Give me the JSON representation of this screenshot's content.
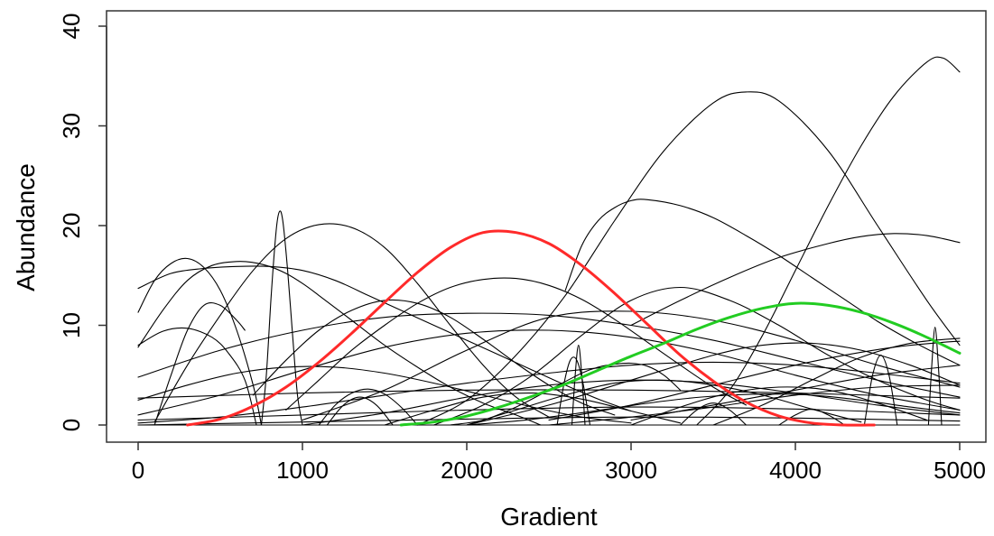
{
  "chart_data": {
    "type": "line",
    "title": "",
    "xlabel": "Gradient",
    "ylabel": "Abundance",
    "xlim": [
      -100,
      5100
    ],
    "ylim": [
      0,
      41
    ],
    "xticks": [
      0,
      1000,
      2000,
      3000,
      4000,
      5000
    ],
    "yticks": [
      0,
      10,
      20,
      30,
      40
    ],
    "xtick_labels": [
      "0",
      "1000",
      "2000",
      "3000",
      "4000",
      "5000"
    ],
    "ytick_labels": [
      "0",
      "10",
      "20",
      "30",
      "40"
    ],
    "grid": false,
    "legend": "none",
    "colors": {
      "default": "#000000",
      "red": "#ff2a2a",
      "green": "#22cc22",
      "frame": "#333333"
    },
    "series": [
      {
        "color": "red",
        "x": [
          300,
          500,
          700,
          900,
          1100,
          1300,
          1500,
          1700,
          1900,
          2100,
          2300,
          2500,
          2700,
          2900,
          3100,
          3300,
          3500,
          3700,
          3900,
          4100,
          4300,
          4480
        ],
        "y": [
          0.0,
          0.6,
          1.9,
          3.8,
          6.3,
          9.2,
          12.3,
          15.3,
          17.8,
          19.3,
          19.3,
          18.2,
          16.0,
          13.2,
          10.1,
          7.0,
          4.4,
          2.3,
          0.9,
          0.2,
          0.0,
          0.0
        ]
      },
      {
        "color": "green",
        "x": [
          1600,
          1800,
          2000,
          2200,
          2400,
          2600,
          2800,
          3000,
          3200,
          3400,
          3600,
          3800,
          4000,
          4200,
          4400,
          4600,
          4800,
          5000
        ],
        "y": [
          0.0,
          0.3,
          0.9,
          1.8,
          2.9,
          4.1,
          5.5,
          6.9,
          8.2,
          9.6,
          10.8,
          11.7,
          12.2,
          12.0,
          11.3,
          10.2,
          8.8,
          7.2
        ]
      },
      {
        "color": "default",
        "x": [
          3400,
          3600,
          3800,
          4000,
          4200,
          4400,
          4600,
          4800,
          4900,
          5000
        ],
        "y": [
          0.0,
          3.5,
          9.0,
          15.5,
          22.0,
          28.0,
          33.0,
          36.4,
          36.8,
          35.4
        ]
      },
      {
        "color": "default",
        "x": [
          1700,
          2000,
          2300,
          2600,
          2900,
          3200,
          3500,
          3700,
          3900,
          4200,
          4500,
          4800,
          5000
        ],
        "y": [
          0.0,
          2.5,
          7.0,
          13.0,
          20.5,
          27.5,
          32.3,
          33.4,
          32.5,
          27.5,
          20.0,
          12.5,
          8.0
        ]
      },
      {
        "color": "default",
        "x": [
          2600,
          2700,
          2800,
          2900,
          3000,
          3100,
          3300,
          3500,
          3700,
          3900,
          4100,
          4300,
          4500,
          4700,
          4900,
          5000
        ],
        "y": [
          13.5,
          18.0,
          20.5,
          21.8,
          22.5,
          22.6,
          22.0,
          20.8,
          19.0,
          17.0,
          14.8,
          12.6,
          10.4,
          8.5,
          6.8,
          6.0
        ]
      },
      {
        "color": "default",
        "x": [
          3000,
          3300,
          3600,
          3900,
          4200,
          4400,
          4600,
          4800,
          5000
        ],
        "y": [
          10.0,
          12.5,
          14.8,
          16.8,
          18.2,
          18.9,
          19.2,
          19.0,
          18.3
        ]
      },
      {
        "color": "default",
        "x": [
          100,
          300,
          500,
          700,
          900,
          1100,
          1300,
          1500,
          1700,
          1900,
          2100,
          2300,
          2500
        ],
        "y": [
          0.3,
          6.0,
          11.0,
          15.5,
          18.7,
          20.1,
          19.8,
          17.8,
          14.2,
          10.0,
          6.0,
          2.8,
          0.8
        ]
      },
      {
        "color": "default",
        "x": [
          0,
          200,
          400,
          600,
          800,
          1000,
          1200,
          1400,
          1600,
          1800,
          2000,
          2200,
          2400,
          2600,
          2800,
          3000
        ],
        "y": [
          13.7,
          15.2,
          15.7,
          15.9,
          15.9,
          15.5,
          14.5,
          13.0,
          11.5,
          10.0,
          8.5,
          7.0,
          5.5,
          4.0,
          2.6,
          1.4
        ]
      },
      {
        "color": "default",
        "x": [
          0,
          150,
          300,
          450,
          600,
          700,
          800,
          900,
          1000,
          1100,
          1300,
          1500,
          1700,
          1900,
          2100,
          2300,
          2450
        ],
        "y": [
          7.8,
          11.5,
          14.5,
          16.0,
          16.4,
          16.3,
          15.9,
          15.2,
          14.2,
          13.0,
          10.5,
          8.0,
          5.8,
          3.8,
          2.2,
          1.0,
          0.0
        ]
      },
      {
        "color": "default",
        "x": [
          0,
          100,
          200,
          300,
          400,
          500,
          600,
          700,
          750
        ],
        "y": [
          11.3,
          14.5,
          16.2,
          16.7,
          15.8,
          13.5,
          9.5,
          4.0,
          0.0
        ]
      },
      {
        "color": "default",
        "x": [
          750,
          780,
          810,
          840,
          860,
          880,
          910,
          940,
          970,
          1000
        ],
        "y": [
          0.0,
          5.0,
          13.0,
          19.5,
          21.4,
          20.5,
          15.5,
          9.0,
          3.0,
          0.0
        ]
      },
      {
        "color": "default",
        "x": [
          100,
          200,
          300,
          400,
          500,
          600,
          650
        ],
        "y": [
          0.0,
          5.0,
          9.5,
          12.0,
          12.0,
          10.5,
          9.5
        ]
      },
      {
        "color": "default",
        "x": [
          0,
          150,
          300,
          450,
          550,
          650,
          720
        ],
        "y": [
          8.0,
          9.4,
          9.7,
          8.8,
          7.2,
          4.5,
          0.0
        ]
      },
      {
        "color": "default",
        "x": [
          1900,
          2100,
          2300,
          2500,
          2700,
          2800,
          2900,
          3000,
          3100,
          3200,
          3300
        ],
        "y": [
          0.0,
          0.5,
          1.8,
          3.5,
          5.2,
          5.8,
          6.1,
          6.2,
          5.9,
          5.0,
          3.5
        ]
      },
      {
        "color": "default",
        "x": [
          900,
          1100,
          1300,
          1500,
          1700,
          1900,
          2100,
          2300,
          2500,
          2700,
          2900,
          3100,
          3300,
          3500,
          3700
        ],
        "y": [
          1.5,
          4.5,
          7.5,
          10.0,
          12.2,
          13.8,
          14.6,
          14.7,
          14.0,
          12.6,
          10.6,
          8.3,
          6.0,
          3.8,
          2.0
        ]
      },
      {
        "color": "default",
        "x": [
          700,
          900,
          1100,
          1300,
          1500,
          1700,
          1900,
          2100,
          2300,
          2500,
          2700,
          2900
        ],
        "y": [
          3.0,
          6.5,
          9.5,
          11.5,
          12.5,
          12.2,
          10.8,
          8.6,
          6.2,
          4.0,
          2.2,
          1.0
        ]
      },
      {
        "color": "default",
        "x": [
          0,
          500,
          1000,
          1500,
          2000,
          2500,
          3000,
          3500,
          4000,
          4500,
          5000
        ],
        "y": [
          4.8,
          7.5,
          9.5,
          10.8,
          11.2,
          11.0,
          10.0,
          8.5,
          6.5,
          4.5,
          2.8
        ]
      },
      {
        "color": "default",
        "x": [
          1000,
          1500,
          2000,
          2500,
          3000,
          3500,
          4000,
          4500,
          5000
        ],
        "y": [
          0.5,
          3.5,
          7.5,
          10.8,
          11.4,
          10.5,
          8.5,
          6.0,
          3.8
        ]
      },
      {
        "color": "default",
        "x": [
          1800,
          2100,
          2400,
          2700,
          3000,
          3300,
          3600,
          3900,
          4200,
          4500,
          4800,
          5000
        ],
        "y": [
          0.0,
          2.0,
          5.0,
          9.0,
          12.5,
          13.8,
          12.5,
          10.0,
          7.0,
          4.5,
          2.5,
          1.5
        ]
      },
      {
        "color": "default",
        "x": [
          2000,
          2500,
          3000,
          3500,
          3800,
          4100,
          4400,
          4700,
          5000
        ],
        "y": [
          0.0,
          2.0,
          4.5,
          7.0,
          8.0,
          8.2,
          7.5,
          6.0,
          4.0
        ]
      },
      {
        "color": "default",
        "x": [
          0,
          500,
          1000,
          1500,
          2000,
          2500,
          3000,
          3500,
          4000,
          4500,
          5000
        ],
        "y": [
          1.0,
          3.0,
          5.5,
          7.8,
          9.2,
          9.5,
          8.8,
          7.2,
          5.0,
          3.0,
          1.5
        ]
      },
      {
        "color": "default",
        "x": [
          0,
          300,
          600,
          900,
          1200,
          1500,
          1800,
          2100,
          2400,
          2700,
          3000
        ],
        "y": [
          2.5,
          4.0,
          5.2,
          5.8,
          5.8,
          5.2,
          4.2,
          3.0,
          1.8,
          0.8,
          0.2
        ]
      },
      {
        "color": "default",
        "x": [
          0,
          500,
          1000,
          1500,
          2000,
          2500,
          3000,
          3500,
          4000,
          4500,
          5000
        ],
        "y": [
          0.2,
          0.8,
          1.8,
          3.0,
          4.2,
          5.2,
          6.0,
          6.3,
          6.0,
          5.2,
          4.2
        ]
      },
      {
        "color": "default",
        "x": [
          0,
          1000,
          2000,
          3000,
          4000,
          5000
        ],
        "y": [
          2.7,
          3.2,
          3.5,
          3.5,
          3.2,
          2.7
        ]
      },
      {
        "color": "default",
        "x": [
          1000,
          1500,
          2000,
          2500,
          3000,
          3500,
          4000,
          4500,
          5000
        ],
        "y": [
          0.0,
          1.2,
          2.8,
          4.0,
          4.5,
          4.2,
          3.2,
          2.0,
          1.0
        ]
      },
      {
        "color": "default",
        "x": [
          2500,
          3000,
          3500,
          4000,
          4300,
          4600,
          4900,
          5000
        ],
        "y": [
          0.5,
          2.0,
          4.0,
          6.0,
          7.0,
          7.8,
          8.3,
          8.4
        ]
      },
      {
        "color": "default",
        "x": [
          3500,
          3800,
          4100,
          4400,
          4700,
          5000
        ],
        "y": [
          0.0,
          2.0,
          4.5,
          6.8,
          8.2,
          8.7
        ]
      },
      {
        "color": "default",
        "x": [
          3000,
          3500,
          4000,
          4500,
          5000
        ],
        "y": [
          0.5,
          2.0,
          3.5,
          5.0,
          6.0
        ]
      },
      {
        "color": "default",
        "x": [
          0,
          1000,
          2000,
          3000,
          4000,
          5000
        ],
        "y": [
          0.5,
          1.0,
          1.5,
          1.8,
          1.6,
          1.0
        ]
      },
      {
        "color": "default",
        "x": [
          0,
          1000,
          2000,
          3000,
          4000,
          5000
        ],
        "y": [
          0.0,
          0.3,
          0.6,
          0.8,
          0.7,
          0.4
        ]
      },
      {
        "color": "default",
        "x": [
          2500,
          3000,
          3500,
          4000,
          4500,
          5000
        ],
        "y": [
          0.0,
          0.8,
          1.8,
          3.0,
          3.8,
          4.0
        ]
      },
      {
        "color": "default",
        "x": [
          2000,
          2300,
          2600,
          2900,
          3200,
          3500,
          3800,
          4100,
          4400
        ],
        "y": [
          0.0,
          1.5,
          3.0,
          4.2,
          4.5,
          4.0,
          3.0,
          1.6,
          0.3
        ]
      },
      {
        "color": "default",
        "x": [
          1500,
          1800,
          2100,
          2400,
          2700,
          3000,
          3300
        ],
        "y": [
          0.0,
          1.5,
          2.8,
          3.2,
          2.6,
          1.4,
          0.2
        ]
      },
      {
        "color": "default",
        "x": [
          3000,
          3300,
          3600,
          3900,
          4200,
          4500,
          4800
        ],
        "y": [
          0.0,
          1.8,
          3.2,
          3.8,
          3.5,
          2.2,
          0.5
        ]
      },
      {
        "color": "default",
        "x": [
          2000,
          2300,
          2600,
          2900,
          3200,
          3500,
          3800,
          4100,
          4400,
          4700,
          5000
        ],
        "y": [
          0.0,
          0.4,
          1.0,
          1.7,
          2.4,
          2.9,
          3.1,
          3.0,
          2.5,
          1.8,
          1.2
        ]
      },
      {
        "color": "default",
        "x": [
          1100,
          1200,
          1300,
          1400,
          1500,
          1600,
          1700
        ],
        "y": [
          0.0,
          2.0,
          3.2,
          3.6,
          3.1,
          1.8,
          0.0
        ]
      },
      {
        "color": "default",
        "x": [
          2640,
          2660,
          2680,
          2700,
          2720
        ],
        "y": [
          0.0,
          5.0,
          8.0,
          5.0,
          0.0
        ]
      },
      {
        "color": "default",
        "x": [
          2550,
          2590,
          2630,
          2670,
          2710,
          2750
        ],
        "y": [
          0.0,
          4.0,
          6.5,
          6.5,
          4.0,
          0.0
        ]
      },
      {
        "color": "default",
        "x": [
          4420,
          4470,
          4520,
          4570,
          4620
        ],
        "y": [
          0.0,
          5.0,
          7.0,
          5.0,
          0.0
        ]
      },
      {
        "color": "default",
        "x": [
          4810,
          4830,
          4850,
          4870,
          4890
        ],
        "y": [
          0.0,
          6.0,
          9.8,
          6.0,
          0.0
        ]
      },
      {
        "color": "default",
        "x": [
          1150,
          1250,
          1350,
          1450,
          1550
        ],
        "y": [
          0.0,
          2.0,
          2.8,
          2.0,
          0.0
        ]
      },
      {
        "color": "default",
        "x": [
          3300,
          3400,
          3500,
          3600,
          3700
        ],
        "y": [
          0.0,
          1.5,
          2.2,
          1.5,
          0.0
        ]
      },
      {
        "color": "default",
        "x": [
          3900,
          4000,
          4100,
          4200,
          4300
        ],
        "y": [
          0.0,
          1.0,
          1.6,
          1.0,
          0.0
        ]
      },
      {
        "color": "default",
        "x": [
          0,
          5000
        ],
        "y": [
          0.0,
          0.0
        ]
      }
    ]
  }
}
